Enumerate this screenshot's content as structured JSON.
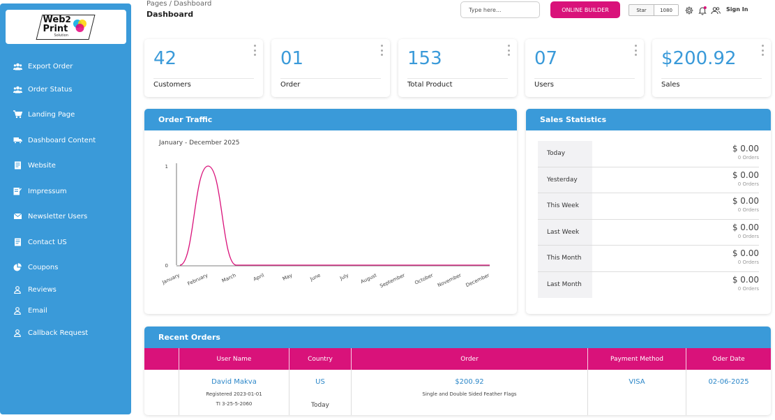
{
  "brand": {
    "logo_text_main": "Web",
    "logo_text_two": "2",
    "logo_text_line2": "Print",
    "logo_sub": "Solution"
  },
  "sidebar": {
    "items": [
      {
        "label": "Export Order",
        "icon": "users-icon"
      },
      {
        "label": "Order Status",
        "icon": "users-icon"
      },
      {
        "label": "Landing Page",
        "icon": "cart-icon"
      },
      {
        "label": "Dashboard Content",
        "icon": "truck-icon"
      },
      {
        "label": "Website",
        "icon": "document-icon"
      },
      {
        "label": "Impressum",
        "icon": "edit-document-icon"
      },
      {
        "label": "Newsletter Users",
        "icon": "envelope-icon"
      },
      {
        "label": "Contact US",
        "icon": "document-icon"
      },
      {
        "label": "Coupons",
        "icon": "pie-icon"
      },
      {
        "label": "Reviews",
        "icon": "person-icon"
      },
      {
        "label": "Email",
        "icon": "person-icon"
      },
      {
        "label": "Callback Request",
        "icon": "person-icon"
      }
    ]
  },
  "header": {
    "breadcrumb": "Pages / Dashboard",
    "title": "Dashboard",
    "search_placeholder": "Type here...",
    "builder_label": "ONLINE BUILDER",
    "star_label": "Star",
    "star_count": "1080",
    "signin_label": "Sign In"
  },
  "stats": [
    {
      "value": "42",
      "label": "Customers"
    },
    {
      "value": "01",
      "label": "Order"
    },
    {
      "value": "153",
      "label": "Total Product"
    },
    {
      "value": "07",
      "label": "Users"
    },
    {
      "value": "$200.92",
      "label": "Sales"
    }
  ],
  "traffic": {
    "title": "Order Traffic",
    "subtitle": "January - December 2025"
  },
  "chart_data": {
    "type": "line",
    "title": "",
    "subtitle": "January - December 2025",
    "categories": [
      "January",
      "February",
      "March",
      "April",
      "May",
      "June",
      "July",
      "August",
      "September",
      "October",
      "November",
      "December"
    ],
    "series": [
      {
        "values": [
          0,
          1,
          0,
          0,
          0,
          0,
          0,
          0,
          0,
          0,
          0,
          0
        ]
      }
    ],
    "yticks": [
      "0",
      "1"
    ],
    "ylim": [
      0,
      1
    ],
    "grid": false,
    "line_color": "#d9127a"
  },
  "sales_stats": {
    "title": "Sales Statistics",
    "rows": [
      {
        "period": "Today",
        "amount": "$ 0.00",
        "orders": "0 Orders"
      },
      {
        "period": "Yesterday",
        "amount": "$ 0.00",
        "orders": "0 Orders"
      },
      {
        "period": "This Week",
        "amount": "$ 0.00",
        "orders": "0 Orders"
      },
      {
        "period": "Last Week",
        "amount": "$ 0.00",
        "orders": "0 Orders"
      },
      {
        "period": "This Month",
        "amount": "$ 0.00",
        "orders": "0 Orders"
      },
      {
        "period": "Last Month",
        "amount": "$ 0.00",
        "orders": "0 Orders"
      }
    ]
  },
  "recent_orders": {
    "title": "Recent Orders",
    "columns": [
      "User Name",
      "Country",
      "Order",
      "Payment Method",
      "Oder Date"
    ],
    "rows": [
      {
        "user_name": "David Makva",
        "registered": "Registered 2023-01-01",
        "ref": "TI 3-25-5-2060",
        "country": "US",
        "country_sub": "Today",
        "order_amount": "$200.92",
        "order_desc": "Single and Double Sided Feather Flags",
        "payment": "VISA",
        "date": "02-06-2025"
      }
    ]
  },
  "colors": {
    "primary": "#3a9ad9",
    "accent": "#d9127a"
  }
}
